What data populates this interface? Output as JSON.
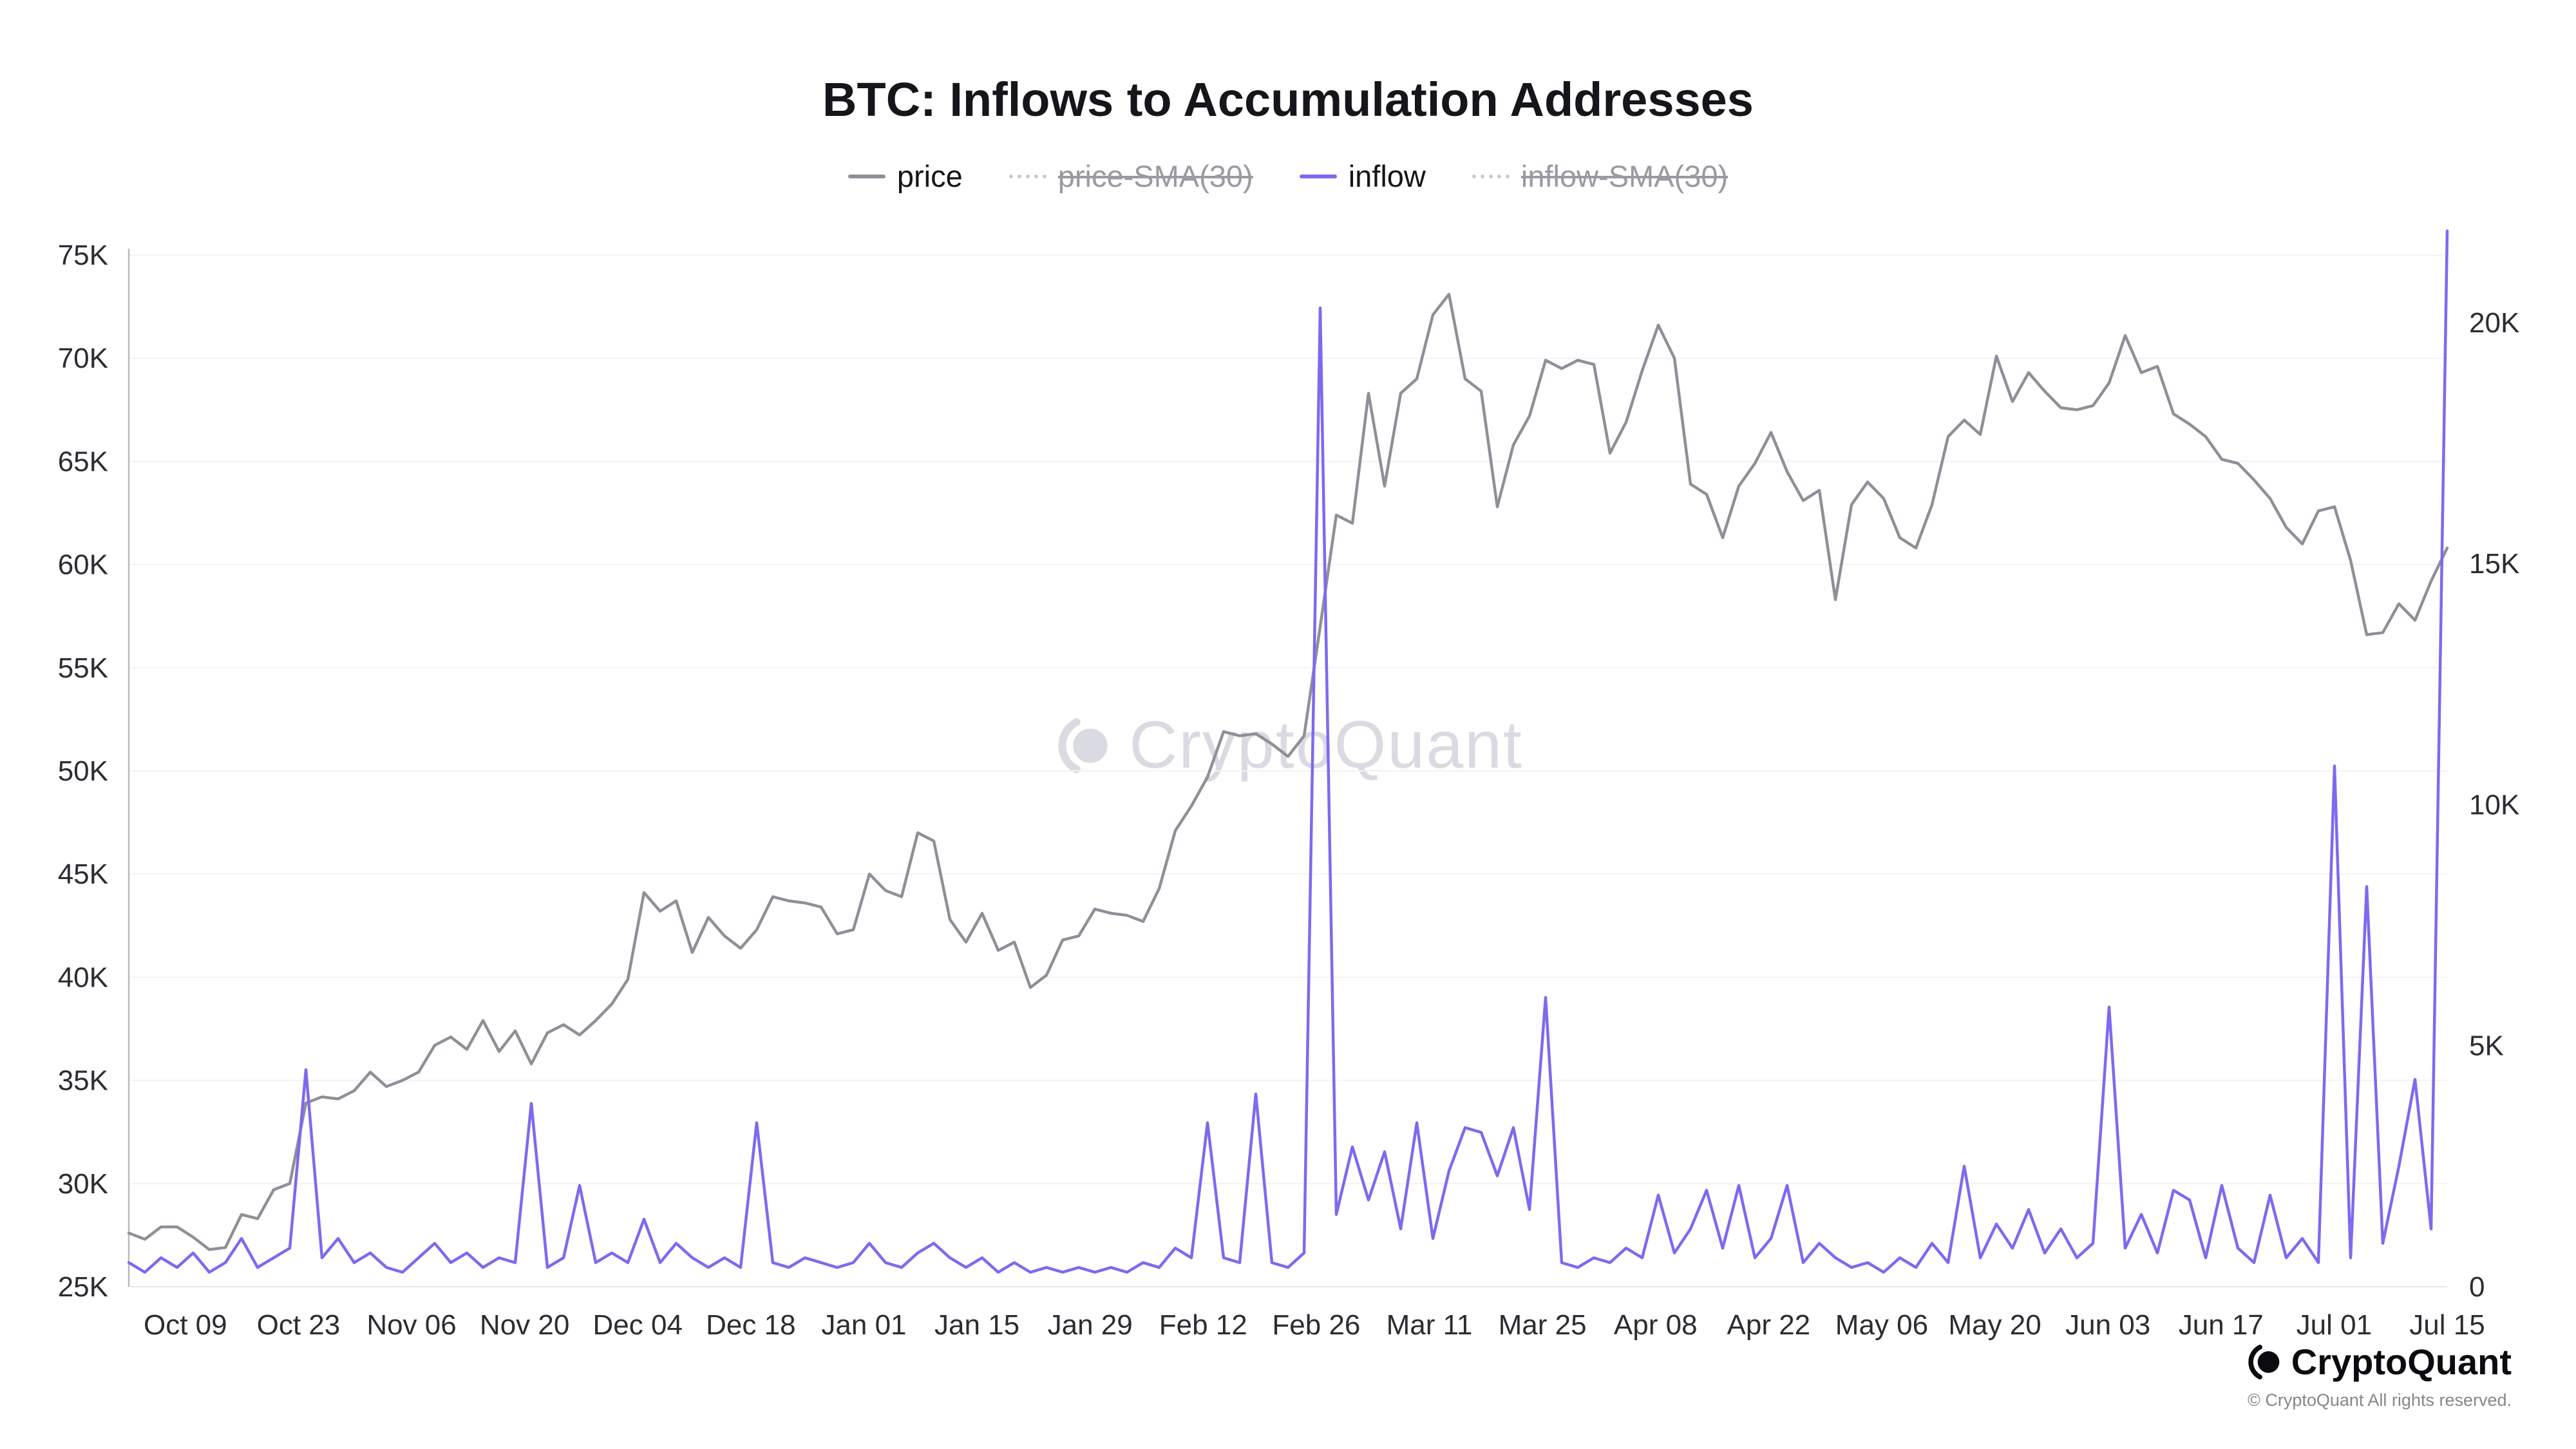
{
  "title": "BTC: Inflows to Accumulation Addresses",
  "watermark": "CryptoQuant",
  "legend": {
    "position": "top-center",
    "items": [
      {
        "label": "price",
        "color": "#8f8f98",
        "style": "solid",
        "active": true
      },
      {
        "label": "price-SMA(30)",
        "color": "#c9c9cf",
        "style": "dashed",
        "active": false
      },
      {
        "label": "inflow",
        "color": "#7c6af0",
        "style": "solid",
        "active": true
      },
      {
        "label": "inflow-SMA(30)",
        "color": "#c9c9cf",
        "style": "dashed",
        "active": false
      }
    ]
  },
  "footer": {
    "brand": "CryptoQuant",
    "copyright": "© CryptoQuant All rights reserved."
  },
  "chart_data": {
    "type": "line",
    "title": "BTC: Inflows to Accumulation Addresses",
    "grid": "faint-horizontal",
    "x_total_days": 287,
    "sample_interval_days": 2,
    "x_tick_labels": [
      "Oct 09",
      "Oct 23",
      "Nov 06",
      "Nov 20",
      "Dec 04",
      "Dec 18",
      "Jan 01",
      "Jan 15",
      "Jan 29",
      "Feb 12",
      "Feb 26",
      "Mar 11",
      "Mar 25",
      "Apr 08",
      "Apr 22",
      "May 06",
      "May 20",
      "Jun 03",
      "Jun 17",
      "Jul 01",
      "Jul 15"
    ],
    "x_tick_days": [
      7,
      21,
      35,
      49,
      63,
      77,
      91,
      105,
      119,
      133,
      147,
      161,
      175,
      189,
      203,
      217,
      231,
      245,
      259,
      273,
      287
    ],
    "left_axis": {
      "series": "price",
      "min_k": 25,
      "max_k": 75,
      "ticks": [
        "25K",
        "30K",
        "35K",
        "40K",
        "45K",
        "50K",
        "55K",
        "60K",
        "65K",
        "70K",
        "75K"
      ],
      "tick_values_k": [
        25,
        30,
        35,
        40,
        45,
        50,
        55,
        60,
        65,
        70,
        75
      ]
    },
    "right_axis": {
      "series": "inflow",
      "min_k": 0,
      "max_at_top_k": 21.4,
      "ticks": [
        "0",
        "5K",
        "10K",
        "15K",
        "20K"
      ],
      "tick_values_k": [
        0,
        5,
        10,
        15,
        20
      ]
    },
    "series": [
      {
        "name": "price",
        "axis": "left",
        "color": "#8f8f98",
        "values_k": [
          27.6,
          27.3,
          27.9,
          27.9,
          27.4,
          26.8,
          26.9,
          28.5,
          28.3,
          29.7,
          30.0,
          33.9,
          34.2,
          34.1,
          34.5,
          35.4,
          34.7,
          35.0,
          35.4,
          36.7,
          37.1,
          36.5,
          37.9,
          36.4,
          37.4,
          35.8,
          37.3,
          37.7,
          37.2,
          37.9,
          38.7,
          39.9,
          44.1,
          43.2,
          43.7,
          41.2,
          42.9,
          42.0,
          41.4,
          42.3,
          43.9,
          43.7,
          43.6,
          43.4,
          42.1,
          42.3,
          45.0,
          44.2,
          43.9,
          47.0,
          46.6,
          42.8,
          41.7,
          43.1,
          41.3,
          41.7,
          39.5,
          40.1,
          41.8,
          42.0,
          43.3,
          43.1,
          43.0,
          42.7,
          44.3,
          47.1,
          48.3,
          49.7,
          51.9,
          51.7,
          51.8,
          51.3,
          50.7,
          51.7,
          57.0,
          62.4,
          62.0,
          68.3,
          63.8,
          68.3,
          69.0,
          72.1,
          73.1,
          69.0,
          68.4,
          62.8,
          65.8,
          67.2,
          69.9,
          69.5,
          69.9,
          69.7,
          65.4,
          66.9,
          69.4,
          71.6,
          70.0,
          63.9,
          63.4,
          61.3,
          63.8,
          64.9,
          66.4,
          64.5,
          63.1,
          63.6,
          58.3,
          62.9,
          64.0,
          63.2,
          61.3,
          60.8,
          62.9,
          66.2,
          67.0,
          66.3,
          70.1,
          67.9,
          69.3,
          68.4,
          67.6,
          67.5,
          67.7,
          68.8,
          71.1,
          69.3,
          69.6,
          67.3,
          66.8,
          66.2,
          65.1,
          64.9,
          64.1,
          63.2,
          61.8,
          61.0,
          62.6,
          62.8,
          60.2,
          56.6,
          56.7,
          58.1,
          57.3,
          59.2,
          60.8
        ]
      },
      {
        "name": "inflow",
        "axis": "right",
        "color": "#7c6af0",
        "values_k": [
          0.5,
          0.3,
          0.6,
          0.4,
          0.7,
          0.3,
          0.5,
          1.0,
          0.4,
          0.6,
          0.8,
          4.5,
          0.6,
          1.0,
          0.5,
          0.7,
          0.4,
          0.3,
          0.6,
          0.9,
          0.5,
          0.7,
          0.4,
          0.6,
          0.5,
          3.8,
          0.4,
          0.6,
          2.1,
          0.5,
          0.7,
          0.5,
          1.4,
          0.5,
          0.9,
          0.6,
          0.4,
          0.6,
          0.4,
          3.4,
          0.5,
          0.4,
          0.6,
          0.5,
          0.4,
          0.5,
          0.9,
          0.5,
          0.4,
          0.7,
          0.9,
          0.6,
          0.4,
          0.6,
          0.3,
          0.5,
          0.3,
          0.4,
          0.3,
          0.4,
          0.3,
          0.4,
          0.3,
          0.5,
          0.4,
          0.8,
          0.6,
          3.4,
          0.6,
          0.5,
          4.0,
          0.5,
          0.4,
          0.7,
          20.3,
          1.5,
          2.9,
          1.8,
          2.8,
          1.2,
          3.4,
          1.0,
          2.4,
          3.3,
          3.2,
          2.3,
          3.3,
          1.6,
          6.0,
          0.5,
          0.4,
          0.6,
          0.5,
          0.8,
          0.6,
          1.9,
          0.7,
          1.2,
          2.0,
          0.8,
          2.1,
          0.6,
          1.0,
          2.1,
          0.5,
          0.9,
          0.6,
          0.4,
          0.5,
          0.3,
          0.6,
          0.4,
          0.9,
          0.5,
          2.5,
          0.6,
          1.3,
          0.8,
          1.6,
          0.7,
          1.2,
          0.6,
          0.9,
          5.8,
          0.8,
          1.5,
          0.7,
          2.0,
          1.8,
          0.6,
          2.1,
          0.8,
          0.5,
          1.9,
          0.6,
          1.0,
          0.5,
          10.8,
          0.6,
          8.3,
          0.9,
          2.5,
          4.3,
          1.2,
          21.9
        ]
      }
    ]
  }
}
